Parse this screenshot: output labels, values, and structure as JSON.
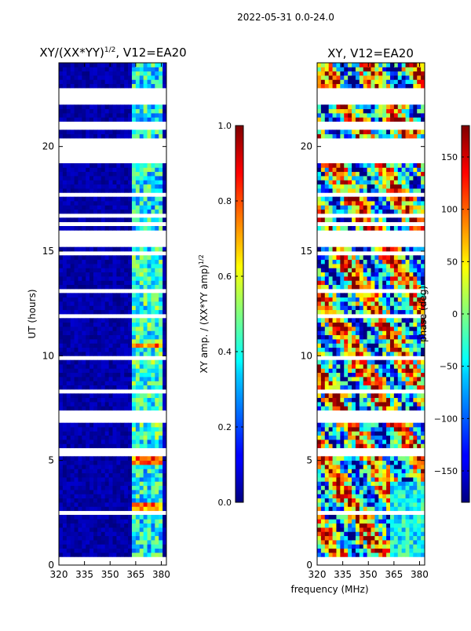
{
  "suptitle": "2022-05-31 0.0-24.0",
  "xlabel_shared": "frequency (MHz)",
  "gaps": [
    [
      0.55,
      0.6
    ],
    [
      0.82,
      0.88
    ],
    [
      1.02,
      1.06
    ],
    [
      1.52,
      1.56
    ],
    [
      1.72,
      1.76
    ],
    [
      2.25,
      2.28
    ],
    [
      2.48,
      2.52
    ],
    [
      2.95,
      3.0
    ],
    [
      3.4,
      3.45
    ],
    [
      3.6,
      3.62
    ],
    [
      4.22,
      4.26
    ],
    [
      4.4,
      4.45
    ],
    [
      5.3,
      5.55
    ],
    [
      5.62,
      5.68
    ],
    [
      6.02,
      6.06
    ],
    [
      6.18,
      6.22
    ],
    [
      6.38,
      6.42
    ],
    [
      6.62,
      6.68
    ],
    [
      6.85,
      7.4
    ],
    [
      7.52,
      7.56
    ],
    [
      7.75,
      7.8
    ],
    [
      8.02,
      8.06
    ],
    [
      8.3,
      8.34
    ],
    [
      8.56,
      8.6
    ],
    [
      8.95,
      9.0
    ],
    [
      9.25,
      9.3
    ],
    [
      9.55,
      9.6
    ],
    [
      9.85,
      9.9
    ],
    [
      10.35,
      10.4
    ],
    [
      11.45,
      11.5
    ],
    [
      11.9,
      11.95
    ],
    [
      12.45,
      12.5
    ],
    [
      13.05,
      13.1
    ],
    [
      13.75,
      13.8
    ],
    [
      14.35,
      14.4
    ],
    [
      14.9,
      15.0
    ],
    [
      15.15,
      15.9
    ],
    [
      16.02,
      16.08
    ],
    [
      16.28,
      16.32
    ],
    [
      16.45,
      16.5
    ],
    [
      16.7,
      16.75
    ],
    [
      16.92,
      16.98
    ],
    [
      17.2,
      17.25
    ],
    [
      17.45,
      17.5
    ],
    [
      17.7,
      17.75
    ],
    [
      17.92,
      17.98
    ],
    [
      18.15,
      18.2
    ],
    [
      18.35,
      18.4
    ],
    [
      18.58,
      18.62
    ],
    [
      18.75,
      18.8
    ],
    [
      18.92,
      18.98
    ],
    [
      19.3,
      20.5
    ],
    [
      20.8,
      21.2
    ],
    [
      21.4,
      21.45
    ],
    [
      21.62,
      21.68
    ],
    [
      22.0,
      22.8
    ],
    [
      23.0,
      23.05
    ],
    [
      23.22,
      23.28
    ],
    [
      23.42,
      23.5
    ],
    [
      23.65,
      23.7
    ]
  ],
  "chart_data": [
    {
      "type": "heatmap",
      "title": "XY/(XX*YY)",
      "title_sup": "1/2",
      "title_suffix": ", V12=EA20",
      "xlabel": "",
      "ylabel": "UT (hours)",
      "xlim": [
        320,
        383
      ],
      "ylim": [
        0,
        24
      ],
      "xticks": [
        320,
        335,
        350,
        365,
        380
      ],
      "yticks": [
        0,
        5,
        10,
        15,
        20
      ],
      "colorbar": {
        "label": "XY amp. / (XX*YY amp)",
        "label_sup": "1/2",
        "range": [
          0.0,
          1.0
        ],
        "ticks": [
          "0.0",
          "0.2",
          "0.4",
          "0.6",
          "0.8",
          "1.0"
        ],
        "tick_values": [
          0.0,
          0.2,
          0.4,
          0.6,
          0.8,
          1.0
        ]
      },
      "features": {
        "background_value": 0.0,
        "bright_band_freq": [
          362,
          381
        ],
        "hot_rows_hours": [
          [
            10.3,
            10.7
          ],
          [
            4.9,
            5.1
          ],
          [
            2.7,
            2.9
          ]
        ]
      }
    },
    {
      "type": "heatmap",
      "title": "XY, V12=EA20",
      "xlabel": "frequency (MHz)",
      "ylabel": "",
      "xlim": [
        320,
        383
      ],
      "ylim": [
        0,
        24
      ],
      "xticks": [
        320,
        335,
        350,
        365,
        380
      ],
      "yticks": [
        0,
        5,
        10,
        15,
        20
      ],
      "colorbar": {
        "label": "phase (deg)",
        "range": [
          -180,
          180
        ],
        "ticks": [
          "150",
          "100",
          "50",
          "0",
          "−50",
          "−100",
          "−150"
        ],
        "tick_values": [
          150,
          100,
          50,
          0,
          -50,
          -100,
          -150
        ]
      }
    }
  ]
}
